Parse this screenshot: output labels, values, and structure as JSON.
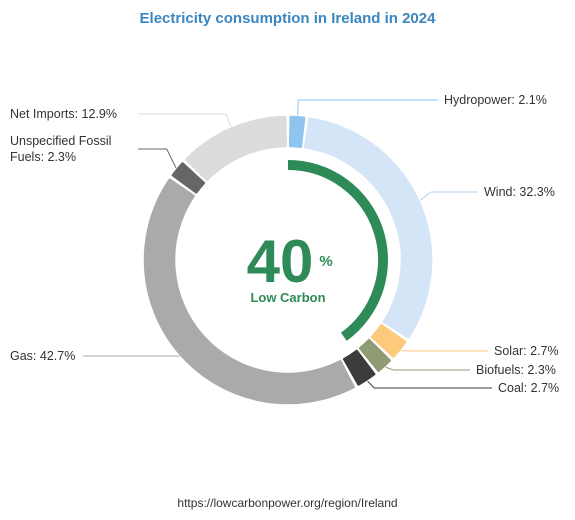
{
  "chart_data": {
    "type": "pie",
    "title": "Electricity consumption in Ireland in 2024",
    "center": {
      "value": "40",
      "unit": "%",
      "label": "Low Carbon",
      "fraction": 0.4
    },
    "slices": [
      {
        "name": "Hydropower",
        "value": 2.1,
        "label": "Hydropower: 2.1%",
        "color": "#8ec4ee"
      },
      {
        "name": "Wind",
        "value": 32.3,
        "label": "Wind: 32.3%",
        "color": "#d3e5f6"
      },
      {
        "name": "Solar",
        "value": 2.7,
        "label": "Solar: 2.7%",
        "color": "#fdca7c"
      },
      {
        "name": "Biofuels",
        "value": 2.3,
        "label": "Biofuels: 2.3%",
        "color": "#8f9c73"
      },
      {
        "name": "Coal",
        "value": 2.7,
        "label": "Coal: 2.7%",
        "color": "#3b3b3b"
      },
      {
        "name": "Gas",
        "value": 42.7,
        "label": "Gas: 42.7%",
        "color": "#aaaaaa"
      },
      {
        "name": "Unspecified Fossil Fuels",
        "value": 2.3,
        "label_lines": [
          "Unspecified Fossil",
          "Fuels: 2.3%"
        ],
        "color": "#666666"
      },
      {
        "name": "Net Imports",
        "value": 12.9,
        "label": "Net Imports: 12.9%",
        "color": "#dcdcdc"
      }
    ],
    "low_carbon_color": "#2e8b57"
  },
  "footer": {
    "url": "https://lowcarbonpower.org/region/Ireland"
  }
}
